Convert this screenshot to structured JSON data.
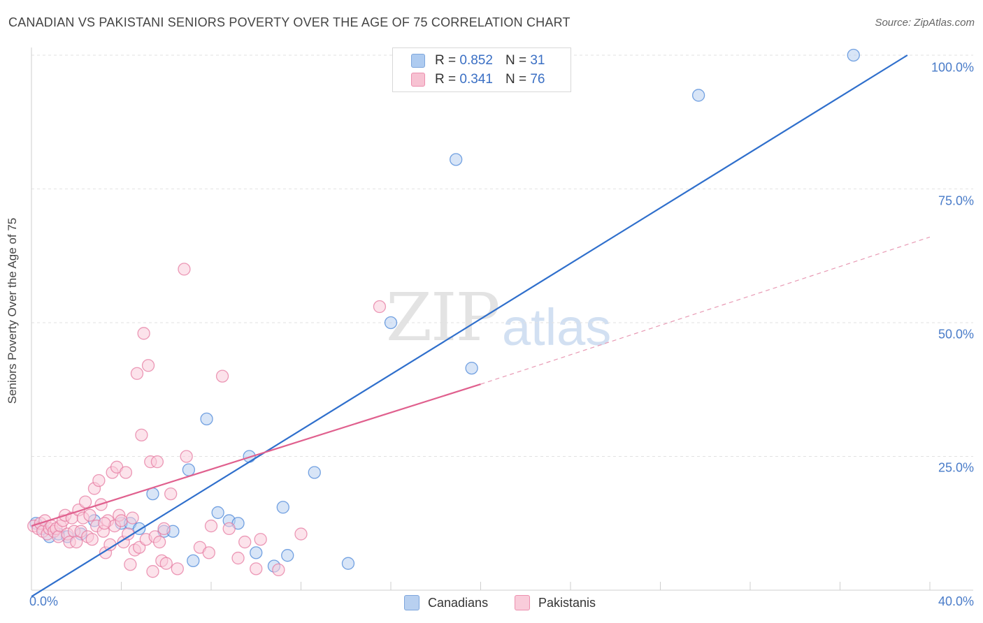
{
  "title": "CANADIAN VS PAKISTANI SENIORS POVERTY OVER THE AGE OF 75 CORRELATION CHART",
  "source": "Source: ZipAtlas.com",
  "watermark": {
    "zip": "ZIP",
    "atlas": "atlas"
  },
  "legend_top": {
    "rows": [
      {
        "r_label": "R =",
        "r_value": "0.852",
        "n_label": "N =",
        "n_value": "31",
        "color": "#aecbf0",
        "border": "#7ea6dc"
      },
      {
        "r_label": "R =",
        "r_value": "0.341",
        "n_label": "N =",
        "n_value": "76",
        "color": "#f7c2d2",
        "border": "#ec8fae"
      }
    ]
  },
  "legend_bottom": [
    {
      "label": "Canadians",
      "color": "#b8d0f0",
      "border": "#7ea6dc"
    },
    {
      "label": "Pakistanis",
      "color": "#f9ccda",
      "border": "#ec8fae"
    }
  ],
  "chart_data": {
    "type": "scatter",
    "title": "CANADIAN VS PAKISTANI SENIORS POVERTY OVER THE AGE OF 75 CORRELATION CHART",
    "xlabel": "",
    "ylabel": "Seniors Poverty Over the Age of 75",
    "xlim": [
      0,
      40
    ],
    "ylim": [
      0,
      100
    ],
    "x_tick_labels": [
      "0.0%",
      "40.0%"
    ],
    "y_ticks": [
      25,
      50,
      75,
      100
    ],
    "y_tick_labels": [
      "25.0%",
      "50.0%",
      "75.0%",
      "100.0%"
    ],
    "grid": true,
    "legend_position": "top-center",
    "series": [
      {
        "name": "Canadians",
        "color": "#4a86d8",
        "fill": "#b8d0f0",
        "points": [
          [
            0.2,
            12.5
          ],
          [
            0.5,
            11.5
          ],
          [
            0.8,
            10.0
          ],
          [
            1.2,
            10.5
          ],
          [
            1.6,
            10.0
          ],
          [
            2.2,
            10.5
          ],
          [
            2.8,
            13.0
          ],
          [
            4.0,
            12.5
          ],
          [
            4.4,
            12.5
          ],
          [
            4.8,
            11.5
          ],
          [
            5.4,
            18.0
          ],
          [
            5.9,
            11.0
          ],
          [
            6.3,
            11.0
          ],
          [
            7.0,
            22.5
          ],
          [
            7.2,
            5.5
          ],
          [
            7.8,
            32.0
          ],
          [
            8.3,
            14.5
          ],
          [
            8.8,
            13.0
          ],
          [
            9.2,
            12.5
          ],
          [
            9.7,
            25.0
          ],
          [
            10.0,
            7.0
          ],
          [
            10.8,
            4.5
          ],
          [
            11.2,
            15.5
          ],
          [
            11.4,
            6.5
          ],
          [
            12.6,
            22.0
          ],
          [
            14.1,
            5.0
          ],
          [
            16.0,
            50.0
          ],
          [
            18.9,
            80.5
          ],
          [
            19.6,
            41.5
          ],
          [
            29.7,
            92.5
          ],
          [
            36.6,
            100.0
          ]
        ],
        "trend": {
          "x": [
            0.0,
            39.0
          ],
          "y": [
            -1.2,
            100.0
          ],
          "style": "solid",
          "color": "#2f6fcc"
        }
      },
      {
        "name": "Pakistanis",
        "color": "#e57aa0",
        "fill": "#f9ccda",
        "points": [
          [
            0.1,
            12.0
          ],
          [
            0.3,
            11.5
          ],
          [
            0.4,
            12.5
          ],
          [
            0.5,
            11.0
          ],
          [
            0.6,
            13.0
          ],
          [
            0.7,
            10.5
          ],
          [
            0.8,
            11.5
          ],
          [
            0.9,
            12.0
          ],
          [
            1.0,
            11.0
          ],
          [
            1.1,
            11.5
          ],
          [
            1.2,
            10.0
          ],
          [
            1.3,
            12.0
          ],
          [
            1.4,
            13.0
          ],
          [
            1.5,
            14.0
          ],
          [
            1.6,
            10.5
          ],
          [
            1.7,
            9.0
          ],
          [
            1.8,
            13.5
          ],
          [
            1.9,
            11.0
          ],
          [
            2.0,
            9.0
          ],
          [
            2.1,
            15.0
          ],
          [
            2.2,
            11.0
          ],
          [
            2.3,
            13.5
          ],
          [
            2.4,
            16.5
          ],
          [
            2.5,
            10.0
          ],
          [
            2.6,
            14.0
          ],
          [
            2.7,
            9.5
          ],
          [
            2.8,
            19.0
          ],
          [
            2.9,
            12.0
          ],
          [
            3.0,
            20.5
          ],
          [
            3.1,
            16.0
          ],
          [
            3.2,
            11.0
          ],
          [
            3.3,
            7.0
          ],
          [
            3.4,
            13.0
          ],
          [
            3.5,
            8.5
          ],
          [
            3.6,
            22.0
          ],
          [
            3.7,
            12.0
          ],
          [
            3.8,
            23.0
          ],
          [
            3.9,
            14.0
          ],
          [
            4.0,
            13.0
          ],
          [
            4.1,
            9.0
          ],
          [
            4.2,
            22.0
          ],
          [
            4.3,
            10.5
          ],
          [
            4.4,
            4.8
          ],
          [
            4.5,
            13.5
          ],
          [
            4.6,
            7.5
          ],
          [
            4.7,
            40.5
          ],
          [
            4.8,
            8.0
          ],
          [
            4.9,
            29.0
          ],
          [
            5.0,
            48.0
          ],
          [
            5.1,
            9.5
          ],
          [
            5.2,
            42.0
          ],
          [
            5.3,
            24.0
          ],
          [
            5.4,
            3.5
          ],
          [
            5.5,
            10.0
          ],
          [
            5.6,
            24.0
          ],
          [
            5.7,
            9.0
          ],
          [
            5.8,
            5.5
          ],
          [
            5.9,
            11.5
          ],
          [
            6.0,
            5.0
          ],
          [
            6.2,
            18.0
          ],
          [
            6.5,
            4.0
          ],
          [
            6.8,
            60.0
          ],
          [
            6.9,
            25.0
          ],
          [
            7.5,
            8.0
          ],
          [
            7.9,
            7.0
          ],
          [
            8.0,
            12.0
          ],
          [
            8.5,
            40.0
          ],
          [
            8.8,
            11.5
          ],
          [
            9.2,
            6.0
          ],
          [
            9.5,
            9.0
          ],
          [
            10.0,
            4.0
          ],
          [
            10.2,
            9.5
          ],
          [
            11.0,
            3.8
          ],
          [
            12.0,
            10.5
          ],
          [
            15.5,
            53.0
          ],
          [
            3.25,
            12.5
          ]
        ],
        "trend": {
          "x": [
            0.0,
            20.0
          ],
          "y": [
            12.0,
            38.5
          ],
          "style": "solid",
          "color": "#e0608e"
        },
        "trend_extension": {
          "x": [
            20.0,
            40.0
          ],
          "y": [
            38.5,
            66.0
          ],
          "style": "dashed",
          "color": "#e89ab4"
        }
      }
    ]
  }
}
